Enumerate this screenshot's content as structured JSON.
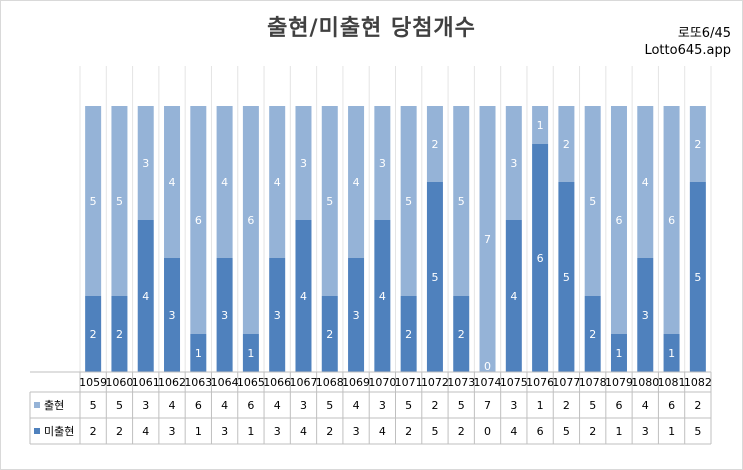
{
  "header": {
    "title": "출현/미출현 당첨개수",
    "brand_line1": "로또6/45",
    "brand_line2": "Lotto645.app"
  },
  "colors": {
    "appeared": "#95b3d7",
    "not_appeared": "#4f81bd",
    "grid": "#bfbfbf",
    "bar_bg": "#e8e8e8"
  },
  "chart_data": {
    "type": "bar",
    "stacked": true,
    "title": "출현/미출현 당첨개수",
    "categories": [
      "1059",
      "1060",
      "1061",
      "1062",
      "1063",
      "1064",
      "1065",
      "1066",
      "1067",
      "1068",
      "1069",
      "1070",
      "1071",
      "1072",
      "1073",
      "1074",
      "1075",
      "1076",
      "1077",
      "1078",
      "1079",
      "1080",
      "1081",
      "1082"
    ],
    "series": [
      {
        "name": "미출현",
        "values": [
          2,
          2,
          4,
          3,
          1,
          3,
          1,
          3,
          4,
          2,
          3,
          4,
          2,
          5,
          2,
          0,
          4,
          6,
          5,
          2,
          1,
          3,
          1,
          5
        ]
      },
      {
        "name": "출현",
        "values": [
          5,
          5,
          3,
          4,
          6,
          4,
          6,
          4,
          3,
          5,
          4,
          3,
          5,
          2,
          5,
          7,
          3,
          1,
          2,
          5,
          6,
          4,
          6,
          2
        ]
      }
    ],
    "ylim": [
      0,
      7
    ],
    "legend": "data-table"
  }
}
